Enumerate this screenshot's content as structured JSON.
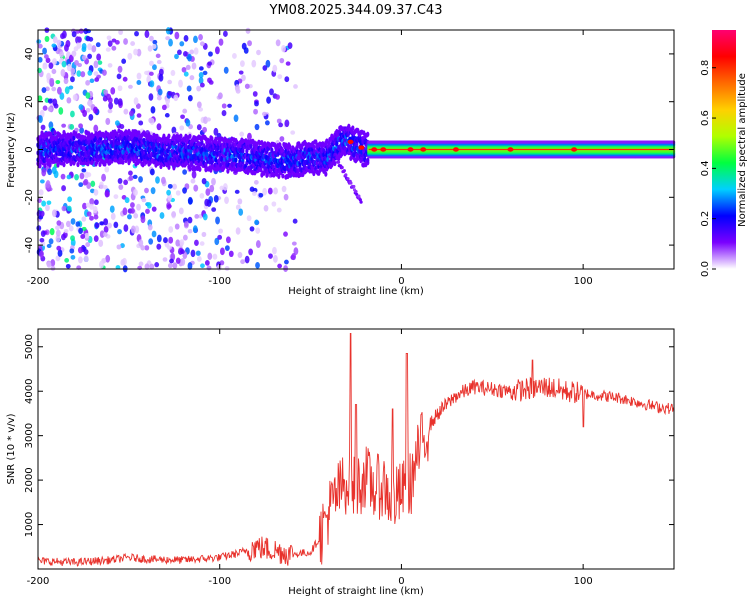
{
  "chart_data": [
    {
      "type": "heatmap",
      "title": "YM08.2025.344.09.37.C43",
      "xlabel": "Height of straight line (km)",
      "ylabel": "Frequency (Hz)",
      "xlim": [
        -200,
        150
      ],
      "ylim": [
        -50,
        50
      ],
      "xticks": [
        -200,
        -100,
        0,
        100
      ],
      "yticks": [
        -40,
        -20,
        0,
        20,
        40
      ],
      "colorbar": {
        "label": "Normalized spectral amplitude",
        "range": [
          0,
          0.95
        ],
        "ticks": [
          0.0,
          0.2,
          0.4,
          0.6,
          0.8
        ],
        "colors": [
          "#ffffff",
          "#7a00ff",
          "#0000ff",
          "#00d0ff",
          "#00ff40",
          "#b0ff00",
          "#ffd000",
          "#ff6a00",
          "#ff0000",
          "#ff0070"
        ]
      },
      "features": {
        "band_center_hz": [
          [
            -200,
            0
          ],
          [
            -170,
            0.5
          ],
          [
            -150,
            1
          ],
          [
            -130,
            -1
          ],
          [
            -110,
            -1.5
          ],
          [
            -90,
            -2.5
          ],
          [
            -75,
            -4
          ],
          [
            -60,
            -5
          ],
          [
            -50,
            -3
          ],
          [
            -42,
            -4
          ],
          [
            -38,
            -1
          ],
          [
            -34,
            3
          ],
          [
            -30,
            4
          ],
          [
            -25,
            2
          ],
          [
            -20,
            0
          ],
          [
            0,
            0
          ],
          [
            50,
            0
          ],
          [
            100,
            0
          ],
          [
            150,
            0
          ]
        ],
        "band_halfwidth_hz": 3,
        "scatter_region_km": [
          -200,
          -58
        ]
      }
    },
    {
      "type": "line",
      "xlabel": "Height of straight line (km)",
      "ylabel": "SNR (10 * v/v)",
      "xlim": [
        -200,
        150
      ],
      "ylim": [
        0,
        5400
      ],
      "xticks": [
        -200,
        -100,
        0,
        100
      ],
      "yticks": [
        1000,
        2000,
        3000,
        4000,
        5000
      ],
      "color": "#e8322c",
      "series": [
        {
          "name": "SNR",
          "x": [
            -200,
            -180,
            -160,
            -150,
            -140,
            -120,
            -100,
            -90,
            -80,
            -70,
            -60,
            -50,
            -45,
            -40,
            -35,
            -30,
            -25,
            -20,
            -15,
            -10,
            -5,
            0,
            5,
            10,
            15,
            20,
            25,
            30,
            40,
            50,
            60,
            70,
            80,
            90,
            100,
            110,
            120,
            130,
            140,
            150
          ],
          "values": [
            180,
            150,
            200,
            260,
            220,
            200,
            260,
            350,
            500,
            420,
            330,
            380,
            700,
            1300,
            1700,
            2000,
            1800,
            2100,
            1800,
            1900,
            1500,
            1700,
            1900,
            2700,
            3200,
            3500,
            3700,
            3900,
            4100,
            4050,
            4000,
            4050,
            4100,
            4000,
            3950,
            3900,
            3850,
            3750,
            3650,
            3600
          ]
        }
      ],
      "spikes": [
        {
          "x": -28,
          "value": 5300
        },
        {
          "x": -25,
          "value": 3700
        },
        {
          "x": -5,
          "value": 3600
        },
        {
          "x": 3,
          "value": 4850
        },
        {
          "x": 72,
          "value": 4700
        },
        {
          "x": 100,
          "value": 3200
        }
      ]
    }
  ]
}
